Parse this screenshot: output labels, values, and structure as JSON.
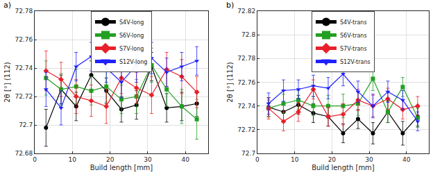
{
  "chart_data": [
    {
      "type": "line",
      "title": "a)",
      "xlabel": "Build length [mm]",
      "ylabel": "2θ [°] (112)",
      "x": [
        3,
        7,
        11,
        15,
        19,
        23,
        27,
        31,
        35,
        39,
        43
      ],
      "xlim": [
        0,
        46
      ],
      "xticks": [
        0,
        10,
        20,
        30,
        40
      ],
      "ylim": [
        72.68,
        72.78
      ],
      "yticks": [
        72.68,
        72.7,
        72.72,
        72.74,
        72.76,
        72.78
      ],
      "grid": true,
      "legend": "upper center",
      "series": [
        {
          "name": "S4V-long",
          "color": "#000000",
          "marker": "circle",
          "line_style": "solid",
          "values": [
            72.698,
            72.725,
            72.713,
            72.735,
            72.724,
            72.711,
            72.714,
            72.741,
            72.712,
            72.713,
            72.715
          ],
          "error": [
            0.013,
            0.01,
            0.01,
            0.01,
            0.009,
            0.009,
            0.01,
            0.01,
            0.01,
            0.01,
            0.009
          ]
        },
        {
          "name": "S6V-long",
          "color": "#22a022",
          "marker": "square",
          "line_style": "solid",
          "values": [
            72.733,
            72.725,
            72.727,
            72.724,
            72.727,
            72.718,
            72.72,
            72.742,
            72.725,
            72.713,
            72.704
          ],
          "error": [
            0.012,
            0.011,
            0.012,
            0.01,
            0.011,
            0.01,
            0.012,
            0.012,
            0.012,
            0.012,
            0.014
          ]
        },
        {
          "name": "S7V-long",
          "color": "#e8202a",
          "marker": "diamond",
          "line_style": "solid",
          "values": [
            72.738,
            72.732,
            72.72,
            72.717,
            72.713,
            72.733,
            72.726,
            72.721,
            72.739,
            72.734,
            72.723
          ],
          "error": [
            0.014,
            0.012,
            0.012,
            0.011,
            0.012,
            0.011,
            0.011,
            0.013,
            0.012,
            0.012,
            0.011
          ]
        },
        {
          "name": "S12V-long",
          "color": "#2020ff",
          "marker": "triangle-down",
          "line_style": "solid",
          "values": [
            72.725,
            72.712,
            72.741,
            72.748,
            72.74,
            72.73,
            72.742,
            72.747,
            72.737,
            72.741,
            72.745
          ],
          "error": [
            0.012,
            0.012,
            0.01,
            0.01,
            0.01,
            0.011,
            0.012,
            0.011,
            0.01,
            0.01,
            0.01
          ]
        }
      ]
    },
    {
      "type": "line",
      "title": "b)",
      "xlabel": "Build length [mm]",
      "ylabel": "2θ [°] (112)",
      "x": [
        3,
        7,
        11,
        15,
        19,
        23,
        27,
        31,
        35,
        39,
        43
      ],
      "xlim": [
        0,
        46
      ],
      "xticks": [
        0,
        10,
        20,
        30,
        40
      ],
      "ylim": [
        72.7,
        72.82
      ],
      "yticks": [
        72.7,
        72.72,
        72.74,
        72.76,
        72.78,
        72.8,
        72.82
      ],
      "grid": true,
      "legend": "upper center",
      "series": [
        {
          "name": "S4V-trans",
          "color": "#000000",
          "marker": "circle",
          "line_style": "solid",
          "values": [
            72.739,
            72.735,
            72.741,
            72.734,
            72.731,
            72.717,
            72.729,
            72.717,
            72.735,
            72.717,
            72.731
          ],
          "error": [
            0.008,
            0.008,
            0.008,
            0.008,
            0.008,
            0.008,
            0.008,
            0.009,
            0.009,
            0.01,
            0.008
          ]
        },
        {
          "name": "S6V-trans",
          "color": "#22a022",
          "marker": "square",
          "line_style": "solid",
          "values": [
            72.738,
            72.742,
            72.745,
            72.74,
            72.74,
            72.74,
            72.742,
            72.763,
            72.735,
            72.756,
            72.73
          ],
          "error": [
            0.007,
            0.008,
            0.008,
            0.008,
            0.009,
            0.01,
            0.01,
            0.01,
            0.009,
            0.008,
            0.008
          ]
        },
        {
          "name": "S7V-trans",
          "color": "#e8202a",
          "marker": "diamond",
          "line_style": "solid",
          "values": [
            72.738,
            72.727,
            72.735,
            72.754,
            72.731,
            72.733,
            72.745,
            72.74,
            72.746,
            72.737,
            72.74
          ],
          "error": [
            0.009,
            0.008,
            0.008,
            0.008,
            0.008,
            0.009,
            0.009,
            0.009,
            0.009,
            0.008,
            0.008
          ]
        },
        {
          "name": "S12V-trans",
          "color": "#2020ff",
          "marker": "triangle-down",
          "line_style": "solid",
          "values": [
            72.742,
            72.753,
            72.754,
            72.757,
            72.755,
            72.767,
            72.752,
            72.74,
            72.752,
            72.745,
            72.727
          ],
          "error": [
            0.009,
            0.009,
            0.008,
            0.009,
            0.009,
            0.01,
            0.009,
            0.01,
            0.009,
            0.008,
            0.008
          ]
        }
      ]
    }
  ]
}
